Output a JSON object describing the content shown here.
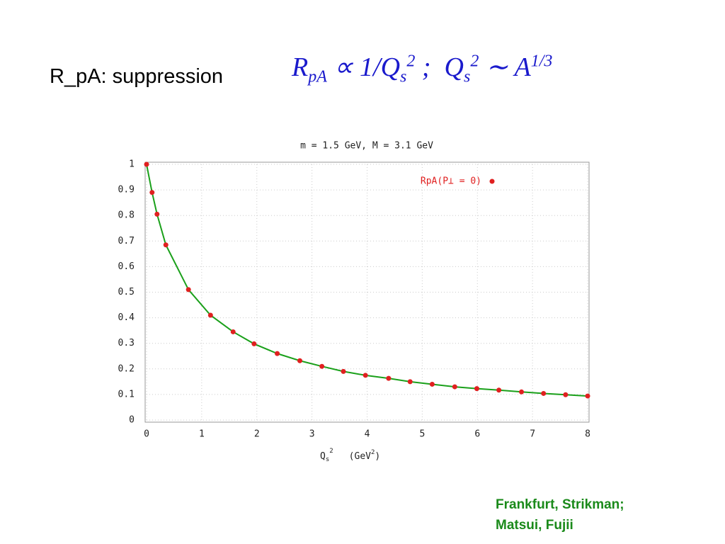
{
  "slide": {
    "title": "R_pA: suppression",
    "formula": {
      "r": "R",
      "r_sub": "pA",
      "mid": " ∝ 1/Q",
      "q_sub": "s",
      "q_sup": "2",
      "sep": " ;  Q",
      "q2_sub": "s",
      "q2_sup": "2",
      "sim": " ∼ A",
      "a_sup": "1/3"
    },
    "citation": [
      "Frankfurt, Strikman;",
      "Matsui, Fujii"
    ]
  },
  "chart_data": {
    "type": "scatter",
    "title": "m = 1.5 GeV,  M = 3.1 GeV",
    "x_label": {
      "q": "Q",
      "sub": "s",
      "sup": "2",
      "unit": "(GeV",
      "unit_sup": "2",
      "close": ")"
    },
    "xlim": [
      0,
      8
    ],
    "xticks": [
      0,
      1,
      2,
      3,
      4,
      5,
      6,
      7,
      8
    ],
    "ylim": [
      0,
      1
    ],
    "yticks": [
      0,
      0.1,
      0.2,
      0.3,
      0.4,
      0.5,
      0.6,
      0.7,
      0.8,
      0.9,
      1
    ],
    "grid": true,
    "legend": "upper right",
    "series": [
      {
        "name": "RpA(P⊥ = 0)",
        "color": "#e02020",
        "x": [
          0,
          0.1,
          0.19,
          0.35,
          0.76,
          1.16,
          1.57,
          1.95,
          2.37,
          2.78,
          3.18,
          3.57,
          3.97,
          4.39,
          4.78,
          5.18,
          5.59,
          5.99,
          6.39,
          6.8,
          7.2,
          7.6,
          8
        ],
        "values": [
          1,
          0.89,
          0.805,
          0.685,
          0.51,
          0.41,
          0.345,
          0.298,
          0.26,
          0.232,
          0.21,
          0.19,
          0.175,
          0.163,
          0.15,
          0.14,
          0.13,
          0.123,
          0.117,
          0.11,
          0.104,
          0.099,
          0.094
        ]
      },
      {
        "type": "line",
        "color": "#1aa01a",
        "x": [
          0,
          0.1,
          0.19,
          0.35,
          0.76,
          1.16,
          1.57,
          1.95,
          2.37,
          2.78,
          3.18,
          3.57,
          3.97,
          4.39,
          4.78,
          5.18,
          5.59,
          5.99,
          6.39,
          6.8,
          7.2,
          7.6,
          8
        ],
        "values": [
          1,
          0.89,
          0.805,
          0.685,
          0.51,
          0.41,
          0.345,
          0.298,
          0.26,
          0.232,
          0.21,
          0.19,
          0.175,
          0.163,
          0.15,
          0.14,
          0.13,
          0.123,
          0.117,
          0.11,
          0.104,
          0.099,
          0.094
        ]
      }
    ]
  }
}
